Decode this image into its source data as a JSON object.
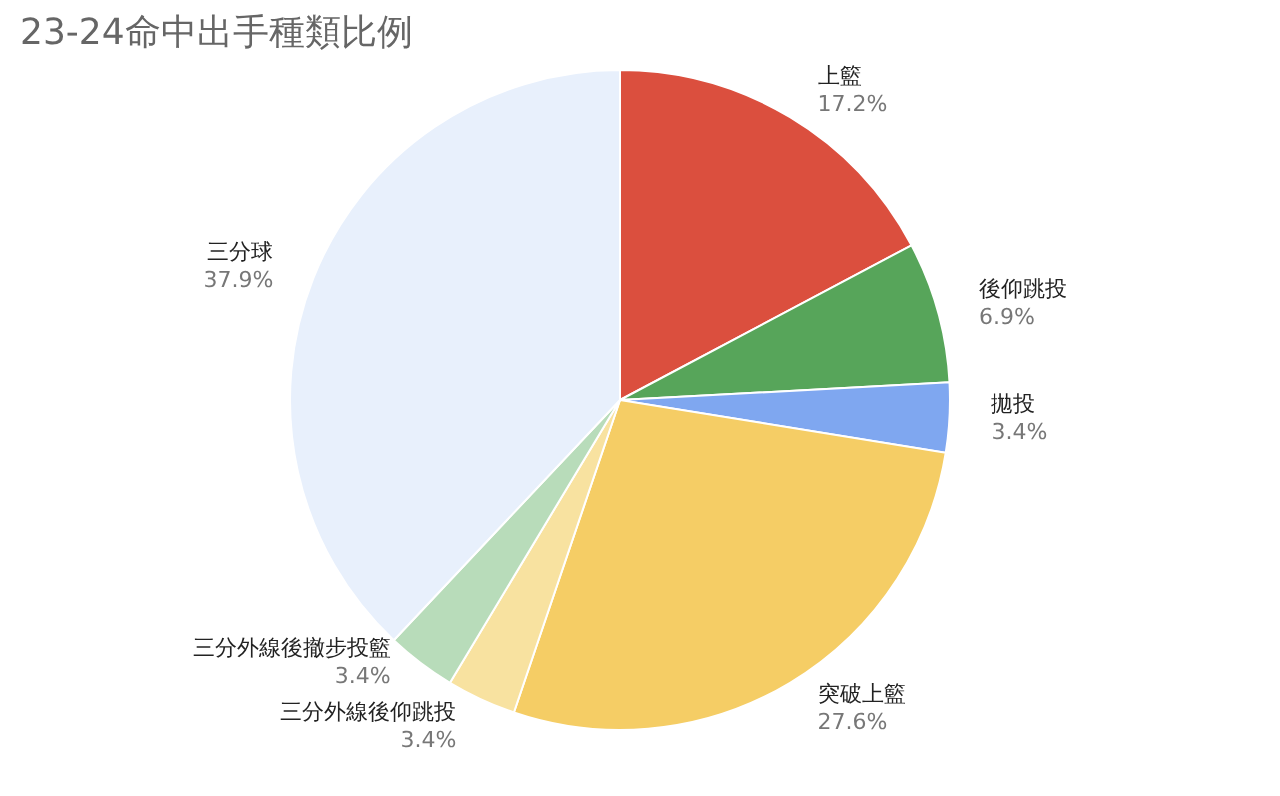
{
  "chart_data": {
    "type": "pie",
    "title": "23-24命中出手種類比例",
    "categories": [
      "上籃",
      "後仰跳投",
      "拋投",
      "突破上籃",
      "三分外線後仰跳投",
      "三分外線後撤步投籃",
      "三分球"
    ],
    "values": [
      17.2,
      6.9,
      3.4,
      27.6,
      3.4,
      3.4,
      37.9
    ],
    "value_labels": [
      "17.2%",
      "6.9%",
      "3.4%",
      "27.6%",
      "3.4%",
      "3.4%",
      "37.9%"
    ],
    "colors": [
      "#db4f3e",
      "#57a55a",
      "#7fa7f0",
      "#f5cd65",
      "#f8e2a0",
      "#b8dcba",
      "#e8f0fc"
    ],
    "legend": false
  }
}
